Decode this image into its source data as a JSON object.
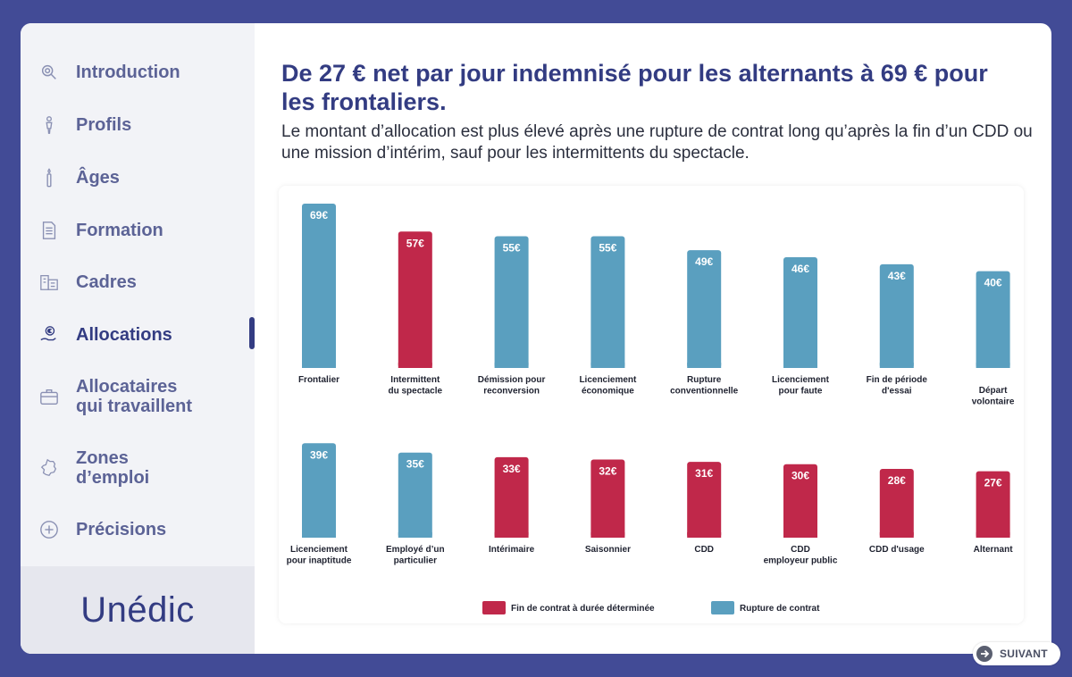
{
  "sidebar": {
    "items": [
      {
        "label": "Introduction",
        "icon": "magnifier-icon"
      },
      {
        "label": "Profils",
        "icon": "person-icon"
      },
      {
        "label": "Âges",
        "icon": "candle-icon"
      },
      {
        "label": "Formation",
        "icon": "document-icon"
      },
      {
        "label": "Cadres",
        "icon": "building-icon"
      },
      {
        "label": "Allocations",
        "icon": "euro-hand-icon",
        "active": true
      },
      {
        "label_line1": "Allocataires",
        "label_line2": "qui travaillent",
        "icon": "briefcase-icon"
      },
      {
        "label_line1": "Zones",
        "label_line2": "d’emploi",
        "icon": "france-map-icon"
      },
      {
        "label": "Précisions",
        "icon": "plus-circle-icon"
      }
    ],
    "logo": "Unédic"
  },
  "title": "De 27 € net par jour indemnisé pour les alternants à 69 € pour les frontaliers.",
  "subtitle": "Le montant d’allocation est plus élevé après une rupture de contrat long qu’après la fin d’un CDD ou une mission d’intérim, sauf pour les intermittents du spectacle.",
  "colors": {
    "fixed_term": "#c0284a",
    "rupture": "#5a9fbf",
    "accent": "#333c82"
  },
  "chart_data": {
    "type": "bar",
    "unit": "€",
    "ylim": [
      0,
      69
    ],
    "legend": [
      {
        "name": "Fin de contrat à durée déterminée",
        "color": "#c0284a"
      },
      {
        "name": "Rupture de contrat",
        "color": "#5a9fbf"
      }
    ],
    "legend_position": "bottom",
    "rows": [
      {
        "bars": [
          {
            "category": [
              "Frontalier"
            ],
            "value": 69,
            "label": "69€",
            "group": "Rupture de contrat"
          },
          {
            "category": [
              "Intermittent",
              "du spectacle"
            ],
            "value": 57,
            "label": "57€",
            "group": "Fin de contrat à durée déterminée"
          },
          {
            "category": [
              "Démission pour",
              "reconversion"
            ],
            "value": 55,
            "label": "55€",
            "group": "Rupture de contrat"
          },
          {
            "category": [
              "Licenciement",
              "économique"
            ],
            "value": 55,
            "label": "55€",
            "group": "Rupture de contrat"
          },
          {
            "category": [
              "Rupture",
              "conventionnelle"
            ],
            "value": 49,
            "label": "49€",
            "group": "Rupture de contrat"
          },
          {
            "category": [
              "Licenciement",
              "pour faute"
            ],
            "value": 46,
            "label": "46€",
            "group": "Rupture de contrat"
          },
          {
            "category": [
              "Fin de période",
              "d'essai"
            ],
            "value": 43,
            "label": "43€",
            "group": "Rupture de contrat"
          },
          {
            "category": [
              "Départ",
              "volontaire"
            ],
            "value": 40,
            "label": "40€",
            "group": "Rupture de contrat"
          }
        ]
      },
      {
        "bars": [
          {
            "category": [
              "Licenciement",
              "pour inaptitude"
            ],
            "value": 39,
            "label": "39€",
            "group": "Rupture de contrat"
          },
          {
            "category": [
              "Employé d’un",
              "particulier"
            ],
            "value": 35,
            "label": "35€",
            "group": "Rupture de contrat"
          },
          {
            "category": [
              "Intérimaire"
            ],
            "value": 33,
            "label": "33€",
            "group": "Fin de contrat à durée déterminée"
          },
          {
            "category": [
              "Saisonnier"
            ],
            "value": 32,
            "label": "32€",
            "group": "Fin de contrat à durée déterminée"
          },
          {
            "category": [
              "CDD"
            ],
            "value": 31,
            "label": "31€",
            "group": "Fin de contrat à durée déterminée"
          },
          {
            "category": [
              "CDD",
              "employeur public"
            ],
            "value": 30,
            "label": "30€",
            "group": "Fin de contrat à durée déterminée"
          },
          {
            "category": [
              "CDD d'usage"
            ],
            "value": 28,
            "label": "28€",
            "group": "Fin de contrat à durée déterminée"
          },
          {
            "category": [
              "Alternant"
            ],
            "value": 27,
            "label": "27€",
            "group": "Fin de contrat à durée déterminée"
          }
        ]
      }
    ]
  },
  "next_button": "SUIVANT"
}
